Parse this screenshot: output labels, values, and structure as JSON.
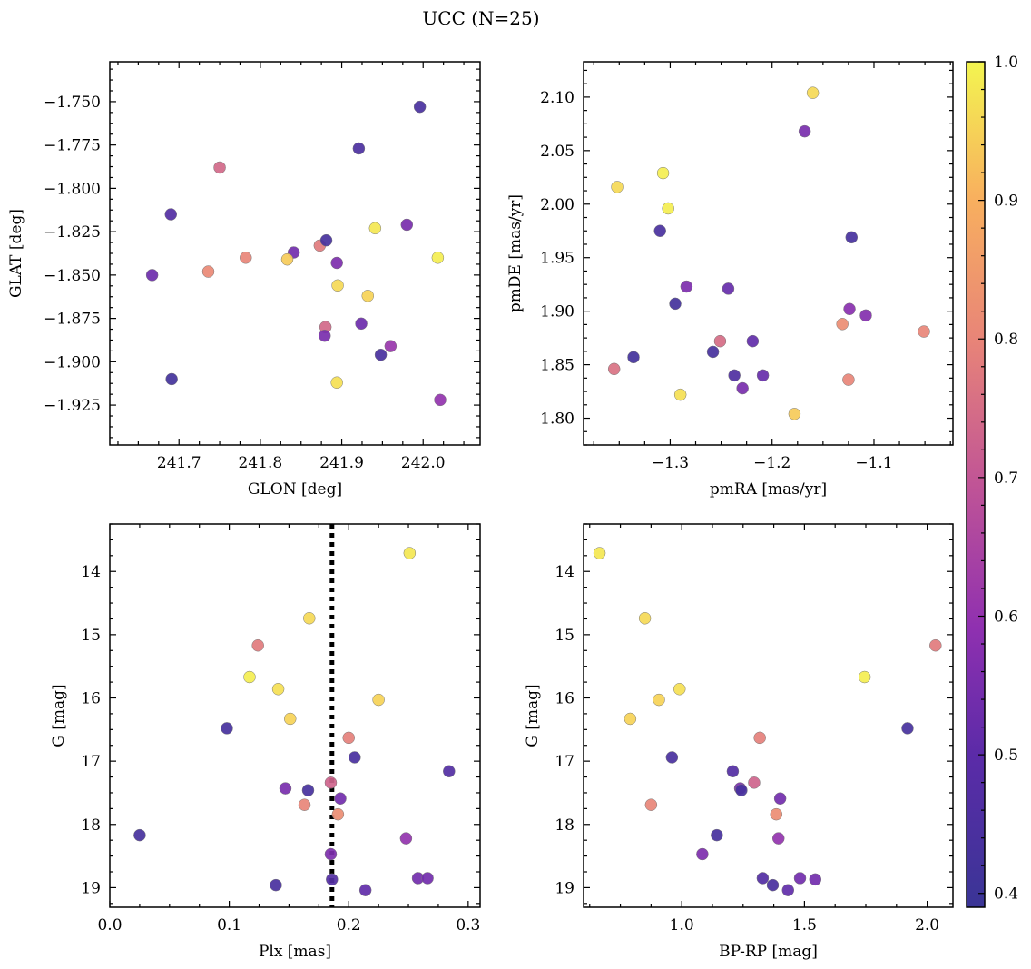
{
  "figure": {
    "title": "UCC (N=25)"
  },
  "colorbar": {
    "range": [
      0.39,
      1.0
    ],
    "ticks": [
      0.4,
      0.5,
      0.6,
      0.7,
      0.8,
      0.9,
      1.0
    ],
    "tick_labels": [
      "0.4",
      "0.5",
      "0.6",
      "0.7",
      "0.8",
      "0.9",
      "1.0"
    ],
    "colormap": "plasma"
  },
  "chart_data": [
    {
      "type": "scatter",
      "xlabel": "GLON [deg]",
      "ylabel": "GLAT [deg]",
      "xlim": [
        241.615,
        242.07
      ],
      "ylim": [
        -1.948,
        -1.727
      ],
      "xticks": [
        241.7,
        241.8,
        241.9,
        242.0
      ],
      "xtick_labels": [
        "241.7",
        "241.8",
        "241.9",
        "242.0"
      ],
      "yticks": [
        -1.925,
        -1.9,
        -1.875,
        -1.85,
        -1.825,
        -1.8,
        -1.775,
        -1.75
      ],
      "ytick_labels": [
        "−1.925",
        "−1.900",
        "−1.875",
        "−1.850",
        "−1.825",
        "−1.800",
        "−1.775",
        "−1.750"
      ],
      "invert_y": false,
      "x": [
        241.996,
        241.921,
        241.75,
        241.69,
        241.941,
        241.98,
        241.873,
        241.881,
        241.841,
        241.667,
        241.782,
        241.736,
        241.833,
        242.018,
        241.894,
        241.895,
        241.932,
        241.88,
        241.924,
        241.879,
        241.96,
        241.948,
        241.691,
        241.894,
        242.021
      ],
      "y": [
        -1.753,
        -1.777,
        -1.788,
        -1.815,
        -1.823,
        -1.821,
        -1.833,
        -1.83,
        -1.837,
        -1.85,
        -1.84,
        -1.848,
        -1.841,
        -1.84,
        -1.843,
        -1.856,
        -1.862,
        -1.88,
        -1.878,
        -1.885,
        -1.891,
        -1.896,
        -1.91,
        -1.912,
        -1.922
      ],
      "c": [
        0.44,
        0.45,
        0.74,
        0.47,
        0.98,
        0.55,
        0.78,
        0.43,
        0.54,
        0.53,
        0.8,
        0.81,
        0.94,
        0.99,
        0.56,
        0.96,
        0.95,
        0.74,
        0.53,
        0.55,
        0.61,
        0.44,
        0.42,
        0.97,
        0.6
      ]
    },
    {
      "type": "scatter",
      "xlabel": "pmRA [mas/yr]",
      "ylabel": "pmDE [mas/yr]",
      "xlim": [
        -1.385,
        -1.0225
      ],
      "ylim": [
        1.775,
        2.133
      ],
      "xticks": [
        -1.3,
        -1.2,
        -1.1
      ],
      "xtick_labels": [
        "−1.3",
        "−1.2",
        "−1.1"
      ],
      "yticks": [
        1.8,
        1.85,
        1.9,
        1.95,
        2.0,
        2.05,
        2.1
      ],
      "ytick_labels": [
        "1.80",
        "1.85",
        "1.90",
        "1.95",
        "2.00",
        "2.05",
        "2.10"
      ],
      "invert_y": false,
      "x": [
        -1.16,
        -1.168,
        -1.307,
        -1.352,
        -1.302,
        -1.31,
        -1.122,
        -1.284,
        -1.243,
        -1.295,
        -1.124,
        -1.108,
        -1.131,
        -1.051,
        -1.251,
        -1.219,
        -1.258,
        -1.336,
        -1.355,
        -1.237,
        -1.209,
        -1.125,
        -1.229,
        -1.29,
        -1.178
      ],
      "y": [
        2.104,
        2.068,
        2.029,
        2.016,
        1.996,
        1.975,
        1.969,
        1.923,
        1.921,
        1.907,
        1.902,
        1.896,
        1.888,
        1.881,
        1.872,
        1.872,
        1.862,
        1.857,
        1.846,
        1.84,
        1.84,
        1.836,
        1.828,
        1.822,
        1.804
      ],
      "c": [
        0.96,
        0.55,
        0.99,
        0.96,
        0.99,
        0.44,
        0.43,
        0.56,
        0.52,
        0.42,
        0.58,
        0.57,
        0.82,
        0.8,
        0.75,
        0.51,
        0.43,
        0.42,
        0.76,
        0.46,
        0.52,
        0.8,
        0.55,
        0.97,
        0.94
      ]
    },
    {
      "type": "scatter",
      "xlabel": "Plx [mas]",
      "ylabel": "G [mag]",
      "xlim": [
        0.0,
        0.31
      ],
      "ylim": [
        19.31,
        13.25
      ],
      "xticks": [
        0.0,
        0.1,
        0.2,
        0.3
      ],
      "xtick_labels": [
        "0.0",
        "0.1",
        "0.2",
        "0.3"
      ],
      "yticks": [
        14,
        15,
        16,
        17,
        18,
        19
      ],
      "ytick_labels": [
        "14",
        "15",
        "16",
        "17",
        "18",
        "19"
      ],
      "invert_y": true,
      "vline": 0.186,
      "x": [
        0.251,
        0.167,
        0.124,
        0.117,
        0.141,
        0.225,
        0.151,
        0.098,
        0.2,
        0.205,
        0.284,
        0.185,
        0.147,
        0.166,
        0.193,
        0.163,
        0.191,
        0.025,
        0.248,
        0.185,
        0.258,
        0.266,
        0.186,
        0.139,
        0.214
      ],
      "y": [
        13.71,
        14.74,
        15.17,
        15.67,
        15.86,
        16.03,
        16.33,
        16.48,
        16.63,
        16.94,
        17.16,
        17.34,
        17.43,
        17.46,
        17.59,
        17.69,
        17.84,
        18.17,
        18.22,
        18.47,
        18.85,
        18.85,
        18.87,
        18.96,
        19.04
      ],
      "c": [
        0.98,
        0.96,
        0.78,
        0.99,
        0.97,
        0.95,
        0.95,
        0.43,
        0.79,
        0.44,
        0.47,
        0.73,
        0.55,
        0.43,
        0.54,
        0.8,
        0.82,
        0.43,
        0.6,
        0.56,
        0.54,
        0.54,
        0.47,
        0.44,
        0.51
      ]
    },
    {
      "type": "scatter",
      "xlabel": "BP-RP [mag]",
      "ylabel": "G [mag]",
      "xlim": [
        0.6,
        2.105
      ],
      "ylim": [
        19.31,
        13.25
      ],
      "xticks": [
        1.0,
        1.5,
        2.0
      ],
      "xtick_labels": [
        "1.0",
        "1.5",
        "2.0"
      ],
      "yticks": [
        14,
        15,
        16,
        17,
        18,
        19
      ],
      "ytick_labels": [
        "14",
        "15",
        "16",
        "17",
        "18",
        "19"
      ],
      "invert_y": true,
      "x": [
        0.665,
        0.85,
        2.034,
        1.745,
        0.991,
        0.907,
        0.79,
        1.92,
        1.318,
        0.96,
        1.208,
        1.295,
        1.238,
        1.243,
        1.401,
        0.875,
        1.385,
        1.143,
        1.394,
        1.084,
        1.482,
        1.544,
        1.33,
        1.371,
        1.433
      ],
      "y": [
        13.71,
        14.74,
        15.17,
        15.67,
        15.86,
        16.03,
        16.33,
        16.48,
        16.63,
        16.94,
        17.16,
        17.34,
        17.43,
        17.46,
        17.59,
        17.69,
        17.84,
        18.17,
        18.22,
        18.47,
        18.85,
        18.87,
        18.85,
        18.96,
        19.04
      ],
      "c": [
        0.98,
        0.96,
        0.78,
        0.99,
        0.97,
        0.95,
        0.95,
        0.43,
        0.79,
        0.44,
        0.47,
        0.73,
        0.55,
        0.43,
        0.54,
        0.8,
        0.82,
        0.43,
        0.6,
        0.56,
        0.54,
        0.54,
        0.47,
        0.44,
        0.51
      ]
    }
  ]
}
